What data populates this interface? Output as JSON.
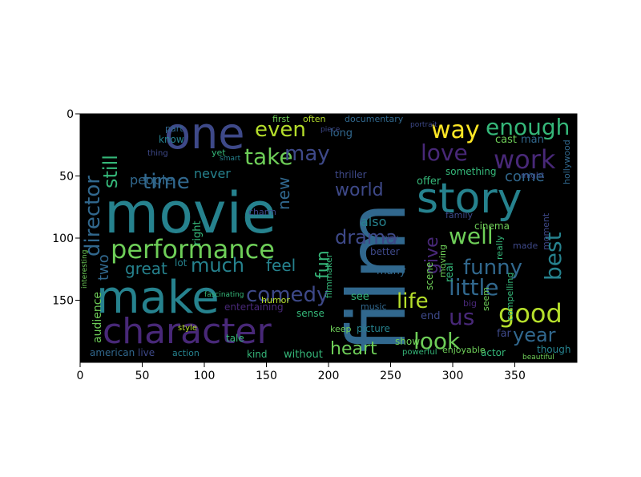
{
  "figure": {
    "type": "image-with-axes",
    "x_axis": {
      "range": [
        0,
        400
      ],
      "ticks": [
        "0",
        "50",
        "100",
        "150",
        "200",
        "250",
        "300",
        "350"
      ]
    },
    "y_axis": {
      "range": [
        0,
        200
      ],
      "inverted": true,
      "ticks": [
        "0",
        "50",
        "100",
        "150"
      ]
    },
    "background_color": "#000000",
    "palette": [
      "#440154",
      "#482878",
      "#3e4989",
      "#31688e",
      "#26828e",
      "#1f9e89",
      "#35b779",
      "#6ece58",
      "#b5de2b",
      "#fde725"
    ]
  },
  "wordcloud": {
    "words": [
      {
        "text": "movie",
        "color": "#26828e"
      },
      {
        "text": "film",
        "color": "#31688e"
      },
      {
        "text": "one",
        "color": "#3e4989"
      },
      {
        "text": "story",
        "color": "#26828e"
      },
      {
        "text": "make",
        "color": "#26828e"
      },
      {
        "text": "character",
        "color": "#482878"
      },
      {
        "text": "performance",
        "color": "#6ece58"
      },
      {
        "text": "director",
        "color": "#31688e"
      },
      {
        "text": "still",
        "color": "#35b779"
      },
      {
        "text": "time",
        "color": "#31688e"
      },
      {
        "text": "take",
        "color": "#6ece58"
      },
      {
        "text": "even",
        "color": "#b5de2b"
      },
      {
        "text": "may",
        "color": "#3e4989"
      },
      {
        "text": "way",
        "color": "#fde725"
      },
      {
        "text": "enough",
        "color": "#35b779"
      },
      {
        "text": "love",
        "color": "#482878"
      },
      {
        "text": "work",
        "color": "#482878"
      },
      {
        "text": "people",
        "color": "#31688e"
      },
      {
        "text": "never",
        "color": "#26828e"
      },
      {
        "text": "new",
        "color": "#31688e"
      },
      {
        "text": "world",
        "color": "#3e4989"
      },
      {
        "text": "come",
        "color": "#31688e"
      },
      {
        "text": "drama",
        "color": "#3e4989"
      },
      {
        "text": "well",
        "color": "#6ece58"
      },
      {
        "text": "best",
        "color": "#26828e"
      },
      {
        "text": "much",
        "color": "#26828e"
      },
      {
        "text": "great",
        "color": "#26828e"
      },
      {
        "text": "two",
        "color": "#31688e"
      },
      {
        "text": "feel",
        "color": "#26828e"
      },
      {
        "text": "fun",
        "color": "#35b779"
      },
      {
        "text": "give",
        "color": "#482878"
      },
      {
        "text": "funny",
        "color": "#31688e"
      },
      {
        "text": "little",
        "color": "#31688e"
      },
      {
        "text": "comedy",
        "color": "#3e4989"
      },
      {
        "text": "life",
        "color": "#b5de2b"
      },
      {
        "text": "us",
        "color": "#482878"
      },
      {
        "text": "good",
        "color": "#b5de2b"
      },
      {
        "text": "look",
        "color": "#6ece58"
      },
      {
        "text": "heart",
        "color": "#6ece58"
      },
      {
        "text": "year",
        "color": "#31688e"
      },
      {
        "text": "also",
        "color": "#26828e"
      },
      {
        "text": "right",
        "color": "#35b779"
      },
      {
        "text": "audience",
        "color": "#6ece58"
      },
      {
        "text": "american",
        "color": "#31688e"
      },
      {
        "text": "action",
        "color": "#26828e"
      },
      {
        "text": "entertaining",
        "color": "#482878"
      },
      {
        "text": "documentary",
        "color": "#31688e"
      },
      {
        "text": "thriller",
        "color": "#3e4989"
      },
      {
        "text": "something",
        "color": "#35b779"
      },
      {
        "text": "offer",
        "color": "#35b779"
      },
      {
        "text": "family",
        "color": "#3e4989"
      },
      {
        "text": "cinema",
        "color": "#6ece58"
      },
      {
        "text": "made",
        "color": "#3e4989"
      },
      {
        "text": "compelling",
        "color": "#35b779"
      },
      {
        "text": "hollywood",
        "color": "#31688e"
      },
      {
        "text": "moment",
        "color": "#3e4989"
      },
      {
        "text": "really",
        "color": "#35b779"
      },
      {
        "text": "moving",
        "color": "#6ece58"
      },
      {
        "text": "real",
        "color": "#35b779"
      },
      {
        "text": "big",
        "color": "#482878"
      },
      {
        "text": "seem",
        "color": "#6ece58"
      },
      {
        "text": "end",
        "color": "#3e4989"
      },
      {
        "text": "far",
        "color": "#3e4989"
      },
      {
        "text": "actor",
        "color": "#35b779"
      },
      {
        "text": "though",
        "color": "#26828e"
      },
      {
        "text": "show",
        "color": "#6ece58"
      },
      {
        "text": "picture",
        "color": "#26828e"
      },
      {
        "text": "keep",
        "color": "#6ece58"
      },
      {
        "text": "without",
        "color": "#35b779"
      },
      {
        "text": "kind",
        "color": "#35b779"
      },
      {
        "text": "live",
        "color": "#3e4989"
      },
      {
        "text": "tale",
        "color": "#35b779"
      },
      {
        "text": "sense",
        "color": "#35b779"
      },
      {
        "text": "music",
        "color": "#31688e"
      },
      {
        "text": "see",
        "color": "#35b779"
      },
      {
        "text": "humor",
        "color": "#b5de2b"
      },
      {
        "text": "lot",
        "color": "#26828e"
      },
      {
        "text": "many",
        "color": "#31688e"
      },
      {
        "text": "better",
        "color": "#3e4989"
      },
      {
        "text": "filmmaker",
        "color": "#35b779"
      },
      {
        "text": "scene",
        "color": "#6ece58"
      },
      {
        "text": "long",
        "color": "#31688e"
      },
      {
        "text": "first",
        "color": "#6ece58"
      },
      {
        "text": "often",
        "color": "#b5de2b"
      },
      {
        "text": "part",
        "color": "#31688e"
      },
      {
        "text": "know",
        "color": "#26828e"
      },
      {
        "text": "thing",
        "color": "#3e4989"
      },
      {
        "text": "yet",
        "color": "#35b779"
      },
      {
        "text": "charm",
        "color": "#3e4989"
      },
      {
        "text": "cast",
        "color": "#6ece58"
      },
      {
        "text": "man",
        "color": "#31688e"
      },
      {
        "text": "might",
        "color": "#3e4989"
      },
      {
        "text": "piece",
        "color": "#3e4989"
      },
      {
        "text": "portrait",
        "color": "#3e4989"
      },
      {
        "text": "play",
        "color": "#3e4989"
      },
      {
        "text": "powerful",
        "color": "#35b779"
      },
      {
        "text": "enjoyable",
        "color": "#6ece58"
      },
      {
        "text": "fascinating",
        "color": "#35b779"
      },
      {
        "text": "interesting",
        "color": "#6ece58"
      },
      {
        "text": "smart",
        "color": "#26828e"
      },
      {
        "text": "style",
        "color": "#b5de2b"
      },
      {
        "text": "beautiful",
        "color": "#6ece58"
      }
    ]
  }
}
